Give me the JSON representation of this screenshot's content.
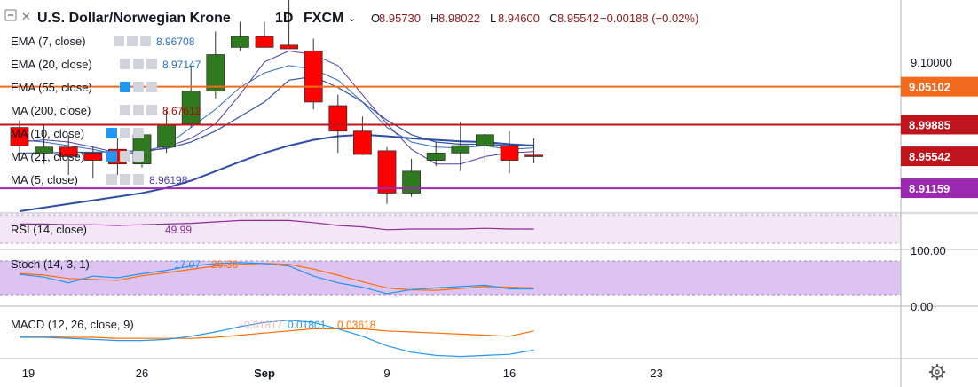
{
  "header": {
    "symbol_title": "U.S. Dollar/Norwegian Krone",
    "interval": "1D",
    "source": "FXCM",
    "ohlc": [
      {
        "k": "O",
        "v": "8.95730"
      },
      {
        "k": "H",
        "v": "8.98022"
      },
      {
        "k": "L",
        "v": "8.94600"
      },
      {
        "k": "C",
        "v": "8.95542"
      }
    ],
    "change": "−0.00188 (−0.02%)"
  },
  "colors": {
    "up": "#2f7a1f",
    "down": "#ff0000",
    "ema7": "#2a6fb8",
    "ema20": "#3356a8",
    "ema55": "#5b7fd6",
    "ma200": "#c00000",
    "ma5": "#5a3aa8",
    "orange_line": "#f26b1d",
    "red_line": "#c0141c",
    "purple_line": "#9c27b0",
    "rsi": "#8e2a9a",
    "stoch_k": "#2196f3",
    "stoch_d": "#ff6d00",
    "macd": "#2196f3",
    "signal": "#ff6d00"
  },
  "indicators": [
    {
      "label": "EMA (7, close)",
      "value": "8.96708",
      "color": "#2a6fb8"
    },
    {
      "label": "EMA (20, close)",
      "value": "8.97147",
      "color": "#2a6fb8"
    },
    {
      "label": "EMA (55, close)",
      "value": "",
      "color": "#9aa6c8"
    },
    {
      "label": "MA (200, close)",
      "value": "8.67612",
      "color": "#c00000"
    },
    {
      "label": "MA (10, close)",
      "value": "",
      "color": "#9aa6c8"
    },
    {
      "label": "MA (21, close)",
      "value": "",
      "color": "#9aa6c8"
    },
    {
      "label": "MA (5, close)",
      "value": "8.96198",
      "color": "#4a3aa8"
    }
  ],
  "panes": {
    "rsi": {
      "label": "RSI (14, close)",
      "value": "49.99"
    },
    "stoch": {
      "label": "Stoch (14, 3, 1)",
      "k_value": "17.07",
      "d_value": "20.36"
    },
    "macd": {
      "label": "MACD (12, 26, close, 9)",
      "hist_value": "−0.01817",
      "macd_value": "0.01801",
      "signal_value": "0.03618"
    }
  },
  "price_axis": {
    "ticks": [
      "9.10000"
    ],
    "tags": [
      {
        "text": "9.05102",
        "color": "#f26b1d"
      },
      {
        "text": "8.99885",
        "color": "#c0141c"
      },
      {
        "text": "8.95542",
        "color": "#c0141c"
      },
      {
        "text": "8.91159",
        "color": "#9c27b0"
      }
    ],
    "stoch_ticks": [
      "100.00",
      "0.00"
    ]
  },
  "time_axis": [
    "19",
    "26",
    "Sep",
    "9",
    "16",
    "23"
  ],
  "chart_data": {
    "type": "candlestick",
    "title": "U.S. Dollar/Norwegian Krone 1D FXCM",
    "x": [
      "Aug 19",
      "Aug 20",
      "Aug 21",
      "Aug 22",
      "Aug 23",
      "Aug 26",
      "Aug 27",
      "Aug 28",
      "Aug 29",
      "Aug 30",
      "Sep 2",
      "Sep 3",
      "Sep 4",
      "Sep 5",
      "Sep 6",
      "Sep 9",
      "Sep 10",
      "Sep 11",
      "Sep 12",
      "Sep 13",
      "Sep 16",
      "Sep 17"
    ],
    "open": [
      8.995,
      8.96,
      8.968,
      8.96,
      8.965,
      8.945,
      8.968,
      9.0,
      9.045,
      9.105,
      9.12,
      9.108,
      9.1,
      9.025,
      8.99,
      8.963,
      8.905,
      8.95,
      8.96,
      8.97,
      8.97,
      8.957
    ],
    "high": [
      9.005,
      8.998,
      8.985,
      8.97,
      8.98,
      8.99,
      9.02,
      9.08,
      9.127,
      9.14,
      9.14,
      9.175,
      9.117,
      9.04,
      9.01,
      8.968,
      8.952,
      8.975,
      9.003,
      8.986,
      8.99,
      8.98
    ],
    "low": [
      8.955,
      8.945,
      8.93,
      8.925,
      8.93,
      8.94,
      8.96,
      8.995,
      9.035,
      9.1,
      9.105,
      9.103,
      9.02,
      8.96,
      8.957,
      8.89,
      8.9,
      8.942,
      8.935,
      8.948,
      8.932,
      8.946
    ],
    "close": [
      8.97,
      8.968,
      8.955,
      8.95,
      8.945,
      8.985,
      8.998,
      9.045,
      9.095,
      9.12,
      9.105,
      9.103,
      9.03,
      8.99,
      8.958,
      8.905,
      8.935,
      8.96,
      8.97,
      8.985,
      8.95,
      8.955
    ],
    "ema7": [
      8.978,
      8.975,
      8.97,
      8.965,
      8.958,
      8.962,
      8.97,
      8.995,
      9.02,
      9.05,
      9.07,
      9.08,
      9.075,
      9.06,
      9.03,
      8.995,
      8.975,
      8.968,
      8.967,
      8.97,
      8.965,
      8.967
    ],
    "ema20": [
      8.96,
      8.96,
      8.961,
      8.961,
      8.962,
      8.963,
      8.966,
      8.975,
      8.99,
      9.01,
      9.03,
      9.06,
      9.065,
      9.05,
      9.03,
      9.005,
      8.985,
      8.975,
      8.972,
      8.972,
      8.97,
      8.971
    ],
    "ma5": [
      8.975,
      8.978,
      8.975,
      8.968,
      8.96,
      8.96,
      8.968,
      8.98,
      9.0,
      9.04,
      9.085,
      9.1,
      9.095,
      9.08,
      9.04,
      9.0,
      8.965,
      8.945,
      8.945,
      8.955,
      8.96,
      8.962
    ],
    "ema55": [
      8.88,
      8.885,
      8.89,
      8.895,
      8.9,
      8.905,
      8.912,
      8.922,
      8.935,
      8.948,
      8.96,
      8.97,
      8.978,
      8.983,
      8.985,
      8.983,
      8.98,
      8.978,
      8.976,
      8.975,
      8.972,
      8.97
    ],
    "hlines": [
      9.05102,
      8.99885,
      8.91159
    ],
    "ylim": [
      8.88,
      9.17
    ],
    "rsi": [
      57,
      57,
      56,
      56,
      55,
      56,
      57,
      58,
      60,
      62,
      62,
      62,
      59,
      55,
      53,
      49,
      50,
      50,
      50,
      51,
      50,
      50
    ],
    "stoch_k": [
      60,
      52,
      35,
      55,
      50,
      62,
      72,
      85,
      92,
      95,
      92,
      85,
      55,
      35,
      22,
      3,
      15,
      20,
      24,
      28,
      17,
      17
    ],
    "stoch_d": [
      63,
      58,
      48,
      45,
      42,
      56,
      65,
      75,
      85,
      90,
      93,
      90,
      76,
      58,
      38,
      20,
      14,
      13,
      18,
      24,
      22,
      20
    ],
    "macd": [
      0.03,
      0.03,
      0.029,
      0.028,
      0.027,
      0.027,
      0.028,
      0.031,
      0.035,
      0.04,
      0.044,
      0.046,
      0.044,
      0.038,
      0.031,
      0.022,
      0.016,
      0.013,
      0.012,
      0.013,
      0.014,
      0.018
    ],
    "signal": [
      0.031,
      0.031,
      0.03,
      0.03,
      0.029,
      0.029,
      0.029,
      0.029,
      0.03,
      0.032,
      0.034,
      0.036,
      0.038,
      0.038,
      0.038,
      0.036,
      0.035,
      0.034,
      0.033,
      0.032,
      0.031,
      0.036
    ]
  }
}
